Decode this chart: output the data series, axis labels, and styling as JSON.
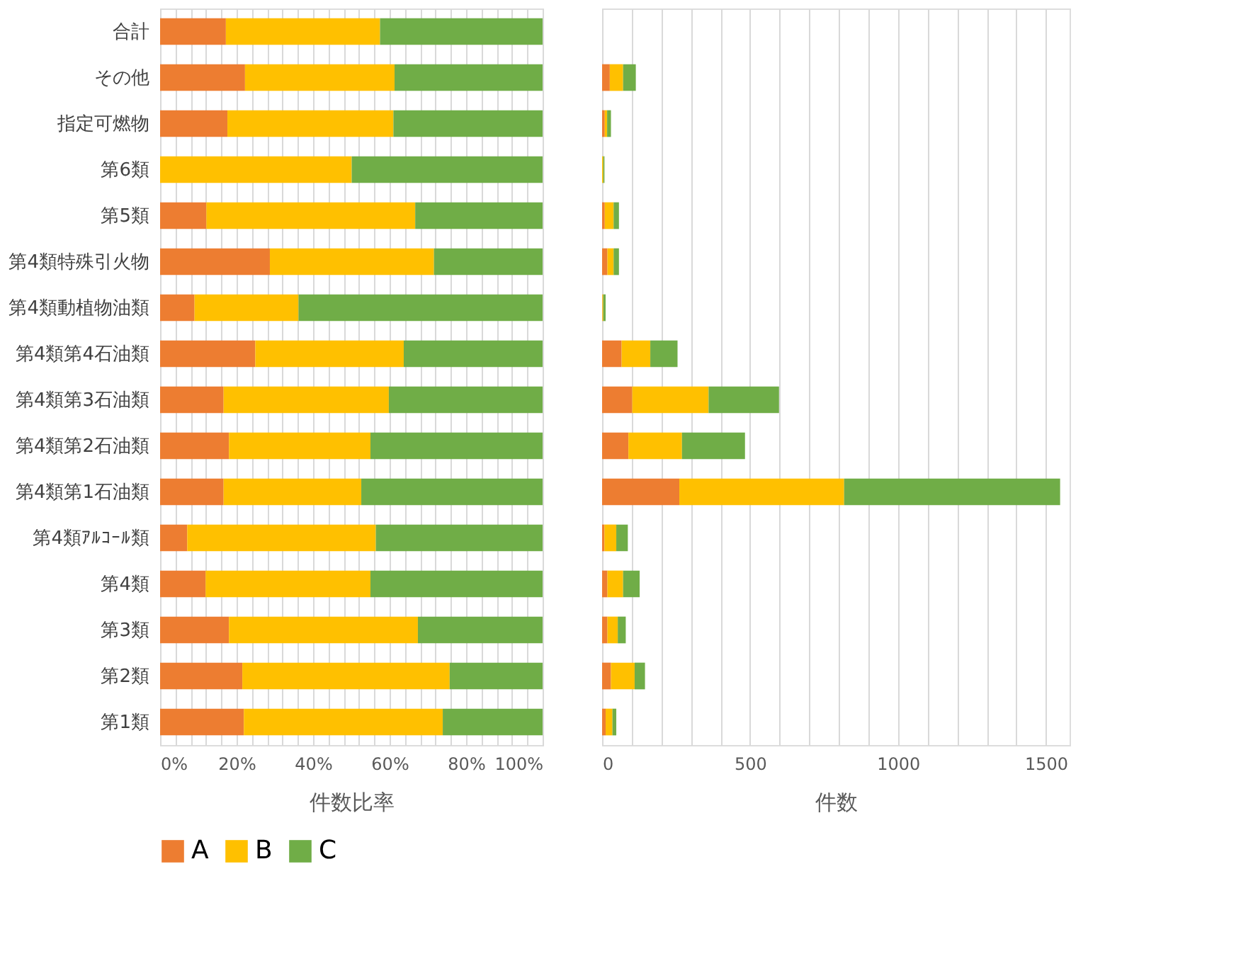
{
  "chart_data": [
    {
      "type": "bar",
      "orientation": "horizontal",
      "stacked": true,
      "xlabel": "件数比率",
      "legend": "bottom",
      "grid": "x",
      "categories": [
        "合計",
        "その他",
        "指定可燃物",
        "第6類",
        "第5類",
        "第4類特殊引火物",
        "第4類動植物油類",
        "第4類第4石油類",
        "第4類第3石油類",
        "第4類第2石油類",
        "第4類第1石油類",
        "第4類ｱﾙｺｰﾙ類",
        "第4類",
        "第3類",
        "第2類",
        "第1類"
      ],
      "xlim": [
        0,
        100
      ],
      "xticks": [
        {
          "value": 0,
          "label": "0%"
        },
        {
          "value": 4,
          "label": null
        },
        {
          "value": 8,
          "label": null
        },
        {
          "value": 12,
          "label": null
        },
        {
          "value": 16,
          "label": null
        },
        {
          "value": 20,
          "label": "20%"
        },
        {
          "value": 24,
          "label": null
        },
        {
          "value": 28,
          "label": null
        },
        {
          "value": 32,
          "label": null
        },
        {
          "value": 36,
          "label": null
        },
        {
          "value": 40,
          "label": "40%"
        },
        {
          "value": 44,
          "label": null
        },
        {
          "value": 48,
          "label": null
        },
        {
          "value": 52,
          "label": null
        },
        {
          "value": 56,
          "label": null
        },
        {
          "value": 60,
          "label": "60%"
        },
        {
          "value": 64,
          "label": null
        },
        {
          "value": 68,
          "label": null
        },
        {
          "value": 72,
          "label": null
        },
        {
          "value": 76,
          "label": null
        },
        {
          "value": 80,
          "label": "80%"
        },
        {
          "value": 84,
          "label": null
        },
        {
          "value": 88,
          "label": null
        },
        {
          "value": 92,
          "label": null
        },
        {
          "value": 96,
          "label": null
        },
        {
          "value": 100,
          "label": "100%"
        }
      ],
      "series": [
        {
          "name": "A",
          "color": "#ed7d31",
          "values": [
            17.2,
            22.2,
            17.6,
            0,
            12.1,
            28.7,
            9.0,
            24.9,
            16.6,
            18.0,
            16.6,
            7.1,
            11.9,
            18.0,
            21.5,
            21.9
          ]
        },
        {
          "name": "B",
          "color": "#ffc000",
          "values": [
            40.3,
            39.1,
            43.4,
            50.1,
            54.6,
            42.9,
            27.2,
            38.8,
            43.2,
            37.0,
            36.0,
            49.3,
            43.1,
            49.4,
            54.2,
            52.0
          ]
        },
        {
          "name": "C",
          "color": "#70ad47",
          "values": [
            42.5,
            38.7,
            39.0,
            49.9,
            33.3,
            28.4,
            63.8,
            36.3,
            40.2,
            45.0,
            47.4,
            43.6,
            45.0,
            32.6,
            24.3,
            26.1
          ]
        }
      ]
    },
    {
      "type": "bar",
      "orientation": "horizontal",
      "stacked": true,
      "xlabel": "件数",
      "grid": "x",
      "tick_labels": "x",
      "categories": [
        null,
        null,
        null,
        null,
        null,
        null,
        null,
        null,
        null,
        null,
        null,
        null,
        null,
        null,
        null,
        null
      ],
      "xlim": [
        0,
        1580
      ],
      "xticks": [
        0,
        {
          "value": 100,
          "label": null
        },
        {
          "value": 200,
          "label": null
        },
        {
          "value": 300,
          "label": null
        },
        {
          "value": 400,
          "label": null
        },
        500,
        {
          "value": 600,
          "label": null
        },
        {
          "value": 700,
          "label": null
        },
        {
          "value": 800,
          "label": null
        },
        {
          "value": 900,
          "label": null
        },
        1000,
        {
          "value": 1100,
          "label": null
        },
        {
          "value": 1200,
          "label": null
        },
        {
          "value": 1300,
          "label": null
        },
        {
          "value": 1400,
          "label": null
        },
        1500
      ],
      "series": [
        {
          "color": "#ed7d31",
          "values": [
            null,
            26,
            9,
            0,
            9,
            18,
            1,
            66,
            102,
            89,
            261,
            8,
            18,
            18,
            30,
            12
          ]
        },
        {
          "color": "#ffc000",
          "values": [
            null,
            45,
            8,
            4,
            30,
            21,
            3,
            97,
            258,
            181,
            557,
            40,
            53,
            35,
            80,
            23
          ]
        },
        {
          "color": "#70ad47",
          "values": [
            null,
            43,
            13,
            4,
            18,
            18,
            8,
            92,
            238,
            213,
            730,
            39,
            56,
            27,
            35,
            13
          ]
        }
      ]
    }
  ]
}
